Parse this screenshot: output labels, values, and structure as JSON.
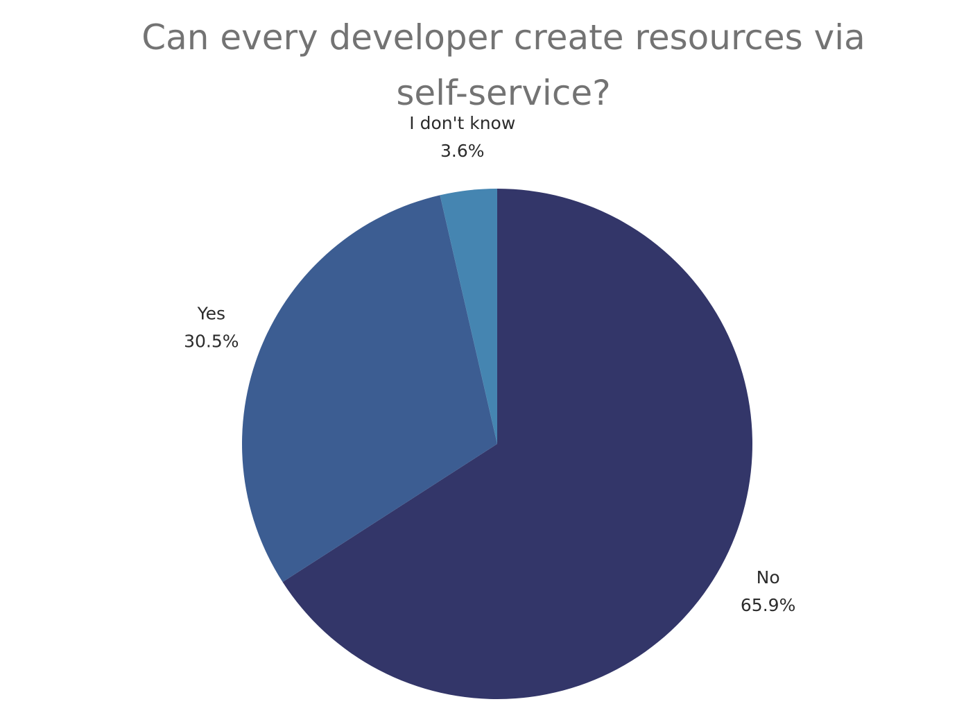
{
  "chart_data": {
    "type": "pie",
    "title": "Can every developer create resources via self-service?",
    "slices": [
      {
        "label": "No",
        "value": 65.9,
        "value_label": "65.9%",
        "color": "#333669"
      },
      {
        "label": "Yes",
        "value": 30.5,
        "value_label": "30.5%",
        "color": "#3c5d92"
      },
      {
        "label": "I don't know",
        "value": 3.6,
        "value_label": "3.6%",
        "color": "#4585b1"
      }
    ],
    "start_angle": "12 o'clock",
    "direction": "clockwise",
    "legend": "none",
    "label_placement": "outside"
  }
}
